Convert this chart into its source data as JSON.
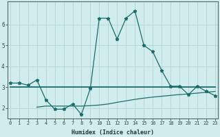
{
  "xlabel": "Humidex (Indice chaleur)",
  "bg_color": "#d0ecec",
  "grid_color": "#b8d8d8",
  "line_color": "#1a6b6b",
  "x": [
    0,
    1,
    2,
    3,
    4,
    5,
    6,
    7,
    8,
    9,
    10,
    11,
    12,
    13,
    14,
    15,
    16,
    17,
    18,
    19,
    20,
    21,
    22,
    23
  ],
  "line1": [
    3.2,
    3.2,
    3.1,
    3.35,
    2.4,
    1.95,
    1.95,
    2.2,
    1.7,
    2.95,
    6.3,
    6.3,
    5.3,
    6.3,
    6.65,
    5.0,
    4.7,
    3.8,
    3.05,
    3.05,
    2.65,
    3.05,
    2.8,
    2.6
  ],
  "line2": [
    3.0,
    3.0,
    3.0,
    3.0,
    3.0,
    3.0,
    3.0,
    3.0,
    3.0,
    3.0,
    3.0,
    3.0,
    3.0,
    3.0,
    3.0,
    3.0,
    3.0,
    3.0,
    3.0,
    3.0,
    3.0,
    3.0,
    3.0,
    3.0
  ],
  "line3_x": [
    3,
    4,
    5,
    6,
    7,
    8,
    9,
    10,
    11,
    12,
    13,
    14,
    15,
    16,
    17,
    18,
    19,
    20,
    21,
    22,
    23
  ],
  "line3_y": [
    2.05,
    2.1,
    2.1,
    2.1,
    2.1,
    2.1,
    2.12,
    2.15,
    2.2,
    2.28,
    2.35,
    2.42,
    2.48,
    2.53,
    2.57,
    2.61,
    2.65,
    2.68,
    2.72,
    2.76,
    2.8
  ],
  "ylim": [
    1.5,
    7.1
  ],
  "xlim": [
    -0.3,
    23.3
  ],
  "yticks": [
    2,
    3,
    4,
    5,
    6
  ],
  "xticks": [
    0,
    1,
    2,
    3,
    4,
    5,
    6,
    7,
    8,
    9,
    10,
    11,
    12,
    13,
    14,
    15,
    16,
    17,
    18,
    19,
    20,
    21,
    22,
    23
  ]
}
